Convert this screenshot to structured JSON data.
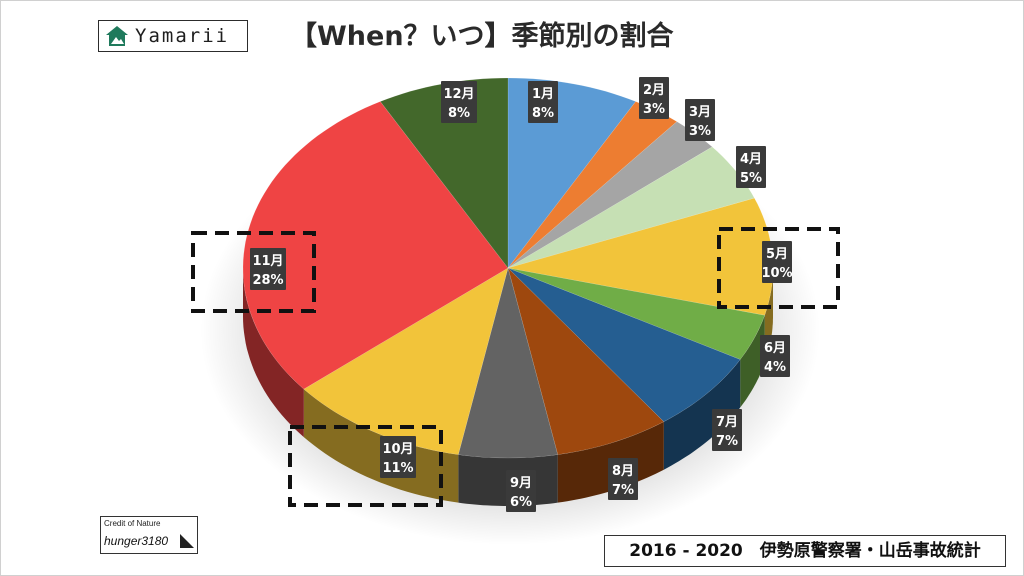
{
  "logo": {
    "brand": "Yamarii",
    "icon": "house-mountain-logo-icon"
  },
  "title": "【When？いつ】季節別の割合",
  "credit": {
    "label": "Credit of Nature",
    "name": "hunger3180",
    "icon": "triangle-corner-icon"
  },
  "source": "2016 - 2020　伊勢原警察署・山岳事故統計",
  "chart_data": {
    "type": "pie",
    "title": "【When？いつ】季節別の割合",
    "categories": [
      "1月",
      "2月",
      "3月",
      "4月",
      "5月",
      "6月",
      "7月",
      "8月",
      "9月",
      "10月",
      "11月",
      "12月"
    ],
    "values": [
      8,
      3,
      3,
      5,
      10,
      4,
      7,
      7,
      6,
      11,
      28,
      8
    ],
    "labels": [
      "8%",
      "3%",
      "3%",
      "5%",
      "10%",
      "4%",
      "7%",
      "7%",
      "6%",
      "11%",
      "28%",
      "8%"
    ],
    "colors": [
      "#5b9bd5",
      "#ed7d31",
      "#a5a5a5",
      "#c6e0b4",
      "#f2c43a",
      "#70ad47",
      "#255e91",
      "#9e480e",
      "#636363",
      "#f2c43a",
      "#ef4444",
      "#43682b"
    ],
    "highlighted": [
      "5月",
      "10月",
      "11月"
    ],
    "start": "12 o'clock, clockwise",
    "style": "3D"
  }
}
